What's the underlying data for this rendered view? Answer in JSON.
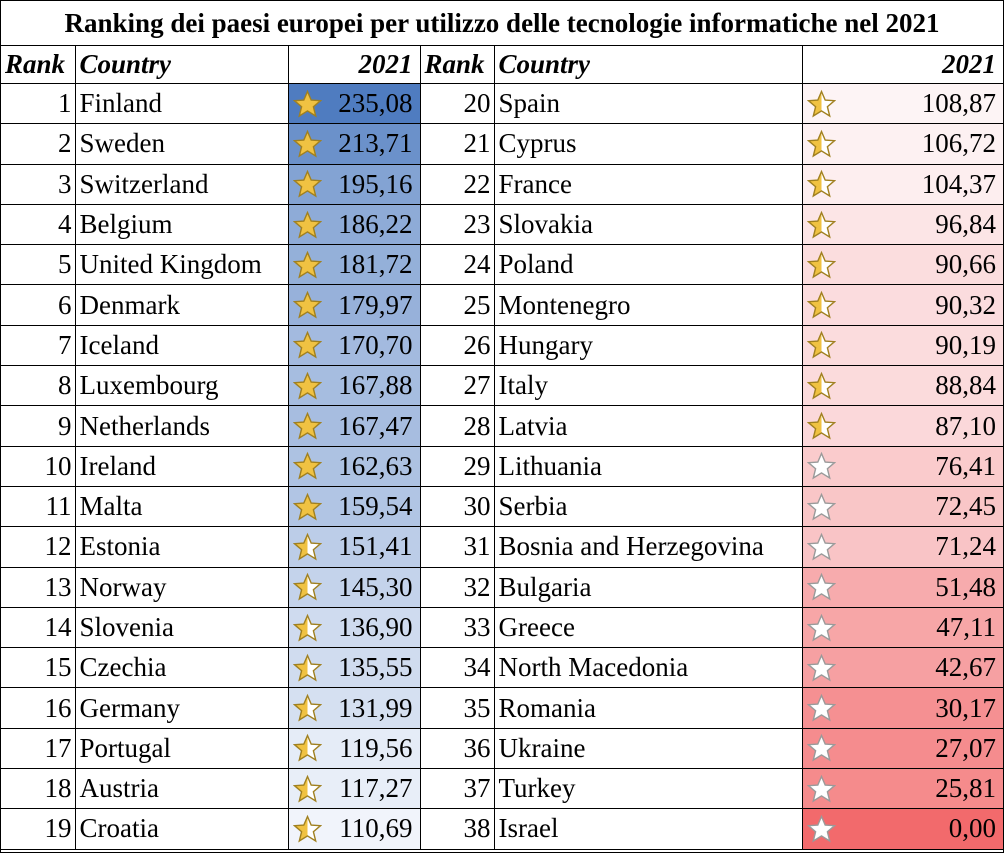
{
  "title": "Ranking dei paesi europei per utilizzo delle tecnologie informatiche nel 2021",
  "headers": {
    "rank": "Rank",
    "country": "Country",
    "year": "2021"
  },
  "colors": {
    "blue_strong": "#4f7cc0",
    "blue_light": "#f3f6fc",
    "red_strong": "#f26a6c",
    "red_light": "#fdf4f5",
    "star_gold": "#f0c242",
    "star_outline": "#a08020"
  },
  "rows_left": [
    {
      "rank": "1",
      "country": "Finland",
      "value": "235,08",
      "v": 235.08,
      "star": "full"
    },
    {
      "rank": "2",
      "country": "Sweden",
      "value": "213,71",
      "v": 213.71,
      "star": "full"
    },
    {
      "rank": "3",
      "country": "Switzerland",
      "value": "195,16",
      "v": 195.16,
      "star": "full"
    },
    {
      "rank": "4",
      "country": "Belgium",
      "value": "186,22",
      "v": 186.22,
      "star": "full"
    },
    {
      "rank": "5",
      "country": "United Kingdom",
      "value": "181,72",
      "v": 181.72,
      "star": "full"
    },
    {
      "rank": "6",
      "country": "Denmark",
      "value": "179,97",
      "v": 179.97,
      "star": "full"
    },
    {
      "rank": "7",
      "country": "Iceland",
      "value": "170,70",
      "v": 170.7,
      "star": "full"
    },
    {
      "rank": "8",
      "country": "Luxembourg",
      "value": "167,88",
      "v": 167.88,
      "star": "full"
    },
    {
      "rank": "9",
      "country": "Netherlands",
      "value": "167,47",
      "v": 167.47,
      "star": "full"
    },
    {
      "rank": "10",
      "country": "Ireland",
      "value": "162,63",
      "v": 162.63,
      "star": "full"
    },
    {
      "rank": "11",
      "country": "Malta",
      "value": "159,54",
      "v": 159.54,
      "star": "full"
    },
    {
      "rank": "12",
      "country": "Estonia",
      "value": "151,41",
      "v": 151.41,
      "star": "half"
    },
    {
      "rank": "13",
      "country": "Norway",
      "value": "145,30",
      "v": 145.3,
      "star": "half"
    },
    {
      "rank": "14",
      "country": "Slovenia",
      "value": "136,90",
      "v": 136.9,
      "star": "half"
    },
    {
      "rank": "15",
      "country": "Czechia",
      "value": "135,55",
      "v": 135.55,
      "star": "half"
    },
    {
      "rank": "16",
      "country": "Germany",
      "value": "131,99",
      "v": 131.99,
      "star": "half"
    },
    {
      "rank": "17",
      "country": "Portugal",
      "value": "119,56",
      "v": 119.56,
      "star": "half"
    },
    {
      "rank": "18",
      "country": "Austria",
      "value": "117,27",
      "v": 117.27,
      "star": "half"
    },
    {
      "rank": "19",
      "country": "Croatia",
      "value": "110,69",
      "v": 110.69,
      "star": "half"
    }
  ],
  "rows_right": [
    {
      "rank": "20",
      "country": "Spain",
      "value": "108,87",
      "v": 108.87,
      "star": "half"
    },
    {
      "rank": "21",
      "country": "Cyprus",
      "value": "106,72",
      "v": 106.72,
      "star": "half"
    },
    {
      "rank": "22",
      "country": "France",
      "value": "104,37",
      "v": 104.37,
      "star": "half"
    },
    {
      "rank": "23",
      "country": "Slovakia",
      "value": "96,84",
      "v": 96.84,
      "star": "half"
    },
    {
      "rank": "24",
      "country": "Poland",
      "value": "90,66",
      "v": 90.66,
      "star": "half"
    },
    {
      "rank": "25",
      "country": "Montenegro",
      "value": "90,32",
      "v": 90.32,
      "star": "half"
    },
    {
      "rank": "26",
      "country": "Hungary",
      "value": "90,19",
      "v": 90.19,
      "star": "half"
    },
    {
      "rank": "27",
      "country": "Italy",
      "value": "88,84",
      "v": 88.84,
      "star": "half"
    },
    {
      "rank": "28",
      "country": "Latvia",
      "value": "87,10",
      "v": 87.1,
      "star": "half"
    },
    {
      "rank": "29",
      "country": "Lithuania",
      "value": "76,41",
      "v": 76.41,
      "star": "empty"
    },
    {
      "rank": "30",
      "country": "Serbia",
      "value": "72,45",
      "v": 72.45,
      "star": "empty"
    },
    {
      "rank": "31",
      "country": "Bosnia and Herzegovina",
      "value": "71,24",
      "v": 71.24,
      "star": "empty"
    },
    {
      "rank": "32",
      "country": "Bulgaria",
      "value": "51,48",
      "v": 51.48,
      "star": "empty"
    },
    {
      "rank": "33",
      "country": "Greece",
      "value": "47,11",
      "v": 47.11,
      "star": "empty"
    },
    {
      "rank": "34",
      "country": "North Macedonia",
      "value": "42,67",
      "v": 42.67,
      "star": "empty"
    },
    {
      "rank": "35",
      "country": "Romania",
      "value": "30,17",
      "v": 30.17,
      "star": "empty"
    },
    {
      "rank": "36",
      "country": "Ukraine",
      "value": "27,07",
      "v": 27.07,
      "star": "empty"
    },
    {
      "rank": "37",
      "country": "Turkey",
      "value": "25,81",
      "v": 25.81,
      "star": "empty"
    },
    {
      "rank": "38",
      "country": "Israel",
      "value": "0,00",
      "v": 0.0,
      "star": "empty"
    }
  ]
}
